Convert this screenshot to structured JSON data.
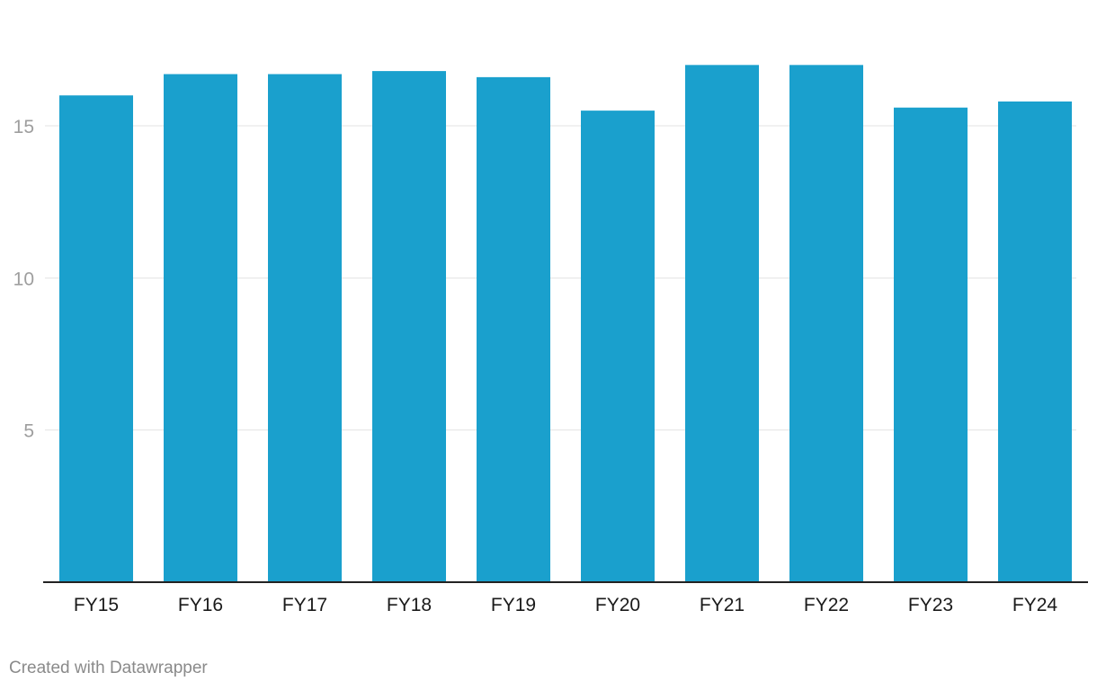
{
  "chart_data": {
    "type": "bar",
    "categories": [
      "FY15",
      "FY16",
      "FY17",
      "FY18",
      "FY19",
      "FY20",
      "FY21",
      "FY22",
      "FY23",
      "FY24"
    ],
    "values": [
      16.0,
      16.7,
      16.7,
      16.8,
      16.6,
      15.5,
      17.0,
      17.0,
      15.6,
      15.8
    ],
    "ylim": [
      0,
      18.25
    ],
    "yticks": [
      5,
      10,
      15
    ],
    "grid": true,
    "bar_color": "#1aa0cd",
    "title": "",
    "xlabel": "",
    "ylabel": ""
  },
  "footer": {
    "credit": "Created with Datawrapper"
  }
}
